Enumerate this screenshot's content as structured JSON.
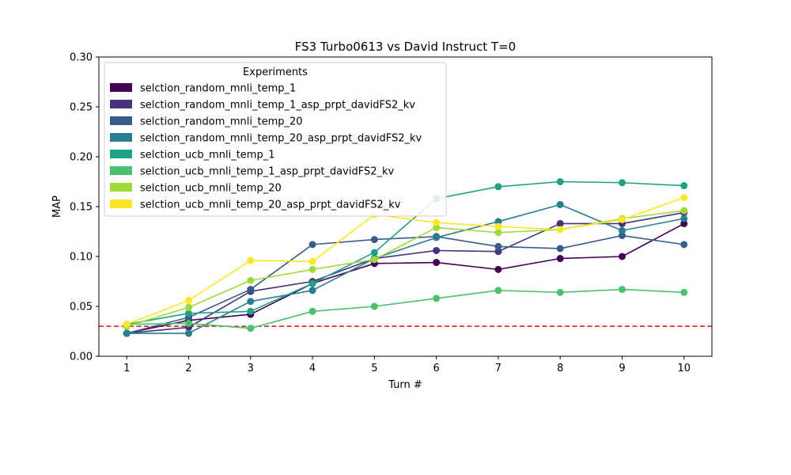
{
  "chart_data": {
    "type": "line",
    "title": "FS3 Turbo0613 vs David Instruct T=0",
    "xlabel": "Turn #",
    "ylabel": "MAP",
    "x": [
      1,
      2,
      3,
      4,
      5,
      6,
      7,
      8,
      9,
      10
    ],
    "xlim": [
      0.55,
      10.45
    ],
    "ylim": [
      0.0,
      0.3
    ],
    "yticks": [
      0.0,
      0.05,
      0.1,
      0.15,
      0.2,
      0.25,
      0.3
    ],
    "ytick_labels": [
      "0.00",
      "0.05",
      "0.10",
      "0.15",
      "0.20",
      "0.25",
      "0.30"
    ],
    "xtick_labels": [
      "1",
      "2",
      "3",
      "4",
      "5",
      "6",
      "7",
      "8",
      "9",
      "10"
    ],
    "grid": false,
    "legend": {
      "title": "Experiments",
      "placement": "top-left"
    },
    "reference_line": {
      "y": 0.03,
      "color": "#e8261d",
      "style": "dashed"
    },
    "series": [
      {
        "name": "selction_random_mnli_temp_1",
        "color": "#440154",
        "values": [
          0.023,
          0.036,
          0.042,
          0.073,
          0.093,
          0.094,
          0.087,
          0.098,
          0.1,
          0.133
        ]
      },
      {
        "name": "selction_random_mnli_temp_1_asp_prpt_davidFS2_kv",
        "color": "#46327e",
        "values": [
          0.023,
          0.029,
          0.065,
          0.075,
          0.098,
          0.106,
          0.105,
          0.133,
          0.133,
          0.144
        ]
      },
      {
        "name": "selction_random_mnli_temp_20",
        "color": "#365c8d",
        "values": [
          0.023,
          0.039,
          0.067,
          0.112,
          0.117,
          0.12,
          0.11,
          0.108,
          0.121,
          0.112
        ]
      },
      {
        "name": "selction_random_mnli_temp_20_asp_prpt_davidFS2_kv",
        "color": "#277f8e",
        "values": [
          0.023,
          0.023,
          0.055,
          0.066,
          0.098,
          0.119,
          0.135,
          0.152,
          0.126,
          0.138
        ]
      },
      {
        "name": "selction_ucb_mnli_temp_1",
        "color": "#1fa187",
        "values": [
          0.032,
          0.043,
          0.045,
          0.073,
          0.104,
          0.158,
          0.17,
          0.175,
          0.174,
          0.171
        ]
      },
      {
        "name": "selction_ucb_mnli_temp_1_asp_prpt_davidFS2_kv",
        "color": "#4ac16d",
        "values": [
          0.032,
          0.033,
          0.028,
          0.045,
          0.05,
          0.058,
          0.066,
          0.064,
          0.067,
          0.064
        ]
      },
      {
        "name": "selction_ucb_mnli_temp_20",
        "color": "#a0da39",
        "values": [
          0.03,
          0.049,
          0.076,
          0.087,
          0.097,
          0.129,
          0.124,
          0.127,
          0.138,
          0.146
        ]
      },
      {
        "name": "selction_ucb_mnli_temp_20_asp_prpt_davidFS2_kv",
        "color": "#fde725",
        "values": [
          0.032,
          0.056,
          0.096,
          0.095,
          0.142,
          0.134,
          0.13,
          0.127,
          0.137,
          0.159
        ]
      }
    ]
  }
}
